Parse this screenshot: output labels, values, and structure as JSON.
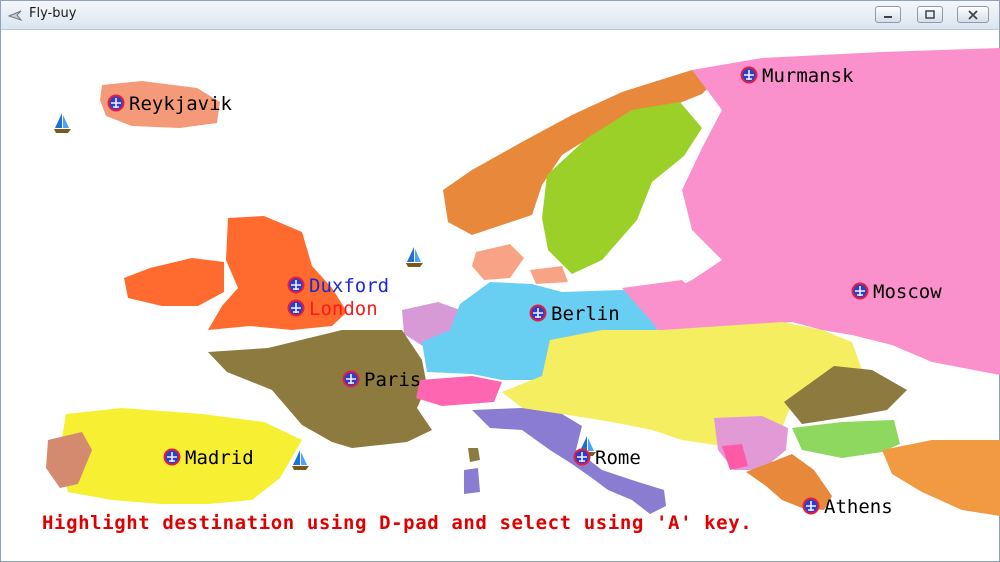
{
  "window": {
    "title": "Fly-buy"
  },
  "cities": [
    {
      "id": "reykjavik",
      "name": "Reykjavik",
      "state": "normal"
    },
    {
      "id": "murmansk",
      "name": "Murmansk",
      "state": "normal"
    },
    {
      "id": "duxford",
      "name": "Duxford",
      "state": "current"
    },
    {
      "id": "london",
      "name": "London",
      "state": "highlighted"
    },
    {
      "id": "berlin",
      "name": "Berlin",
      "state": "normal"
    },
    {
      "id": "moscow",
      "name": "Moscow",
      "state": "normal"
    },
    {
      "id": "paris",
      "name": "Paris",
      "state": "normal"
    },
    {
      "id": "madrid",
      "name": "Madrid",
      "state": "normal"
    },
    {
      "id": "rome",
      "name": "Rome",
      "state": "normal"
    },
    {
      "id": "athens",
      "name": "Athens",
      "state": "normal"
    }
  ],
  "label_colors": {
    "normal": "#000000",
    "current": "#1a2ad6",
    "highlighted": "#ff1a1a"
  },
  "instruction": "Highlight destination using D-pad and select using 'A' key.",
  "icons": {
    "city_marker": "airport-marker-icon",
    "boat": "sailboat-icon"
  }
}
